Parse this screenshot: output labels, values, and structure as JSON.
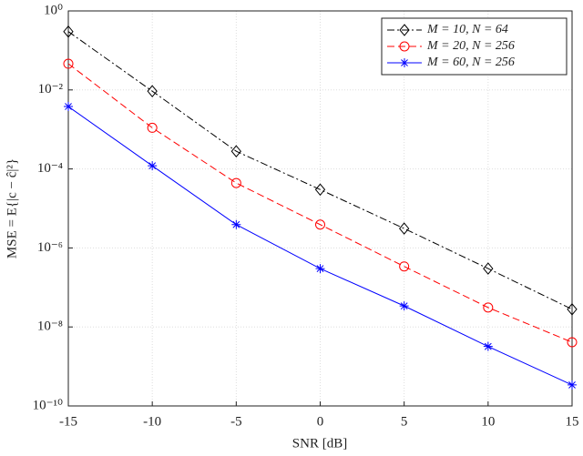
{
  "chart_data": {
    "type": "line",
    "xlabel": "SNR [dB]",
    "ylabel": "MSE = E{|c − ĉ|²}",
    "x": [
      -15,
      -10,
      -5,
      0,
      5,
      10,
      15
    ],
    "xlim": [
      -15,
      15
    ],
    "xticks": [
      -15,
      -10,
      -5,
      0,
      5,
      10,
      15
    ],
    "ylim": [
      1e-10,
      1
    ],
    "yscale": "log",
    "yticks": [
      {
        "value": 1e-10,
        "label": "10⁻¹⁰"
      },
      {
        "value": 1e-08,
        "label": "10⁻⁸"
      },
      {
        "value": 1e-06,
        "label": "10⁻⁶"
      },
      {
        "value": 0.0001,
        "label": "10⁻⁴"
      },
      {
        "value": 0.01,
        "label": "10⁻²"
      },
      {
        "value": 1,
        "label": "10⁰"
      }
    ],
    "grid": true,
    "legend": "upper right",
    "series": [
      {
        "name": "M = 10, N = 64",
        "color": "#000000",
        "marker": "diamond",
        "dash": "dashdot",
        "values": [
          0.3,
          0.0093,
          0.00028,
          3e-05,
          3.1e-06,
          3e-07,
          2.8e-08
        ]
      },
      {
        "name": "M = 20, N = 256",
        "color": "#ff0000",
        "marker": "circle",
        "dash": "dashed",
        "values": [
          0.046,
          0.0011,
          4.4e-05,
          3.9e-06,
          3.4e-07,
          3.1e-08,
          4.1e-09
        ]
      },
      {
        "name": "M = 60, N = 256",
        "color": "#0000ff",
        "marker": "star",
        "dash": "solid",
        "values": [
          0.0038,
          0.00012,
          3.9e-06,
          3e-07,
          3.4e-08,
          3.2e-09,
          3.4e-10
        ]
      }
    ]
  }
}
